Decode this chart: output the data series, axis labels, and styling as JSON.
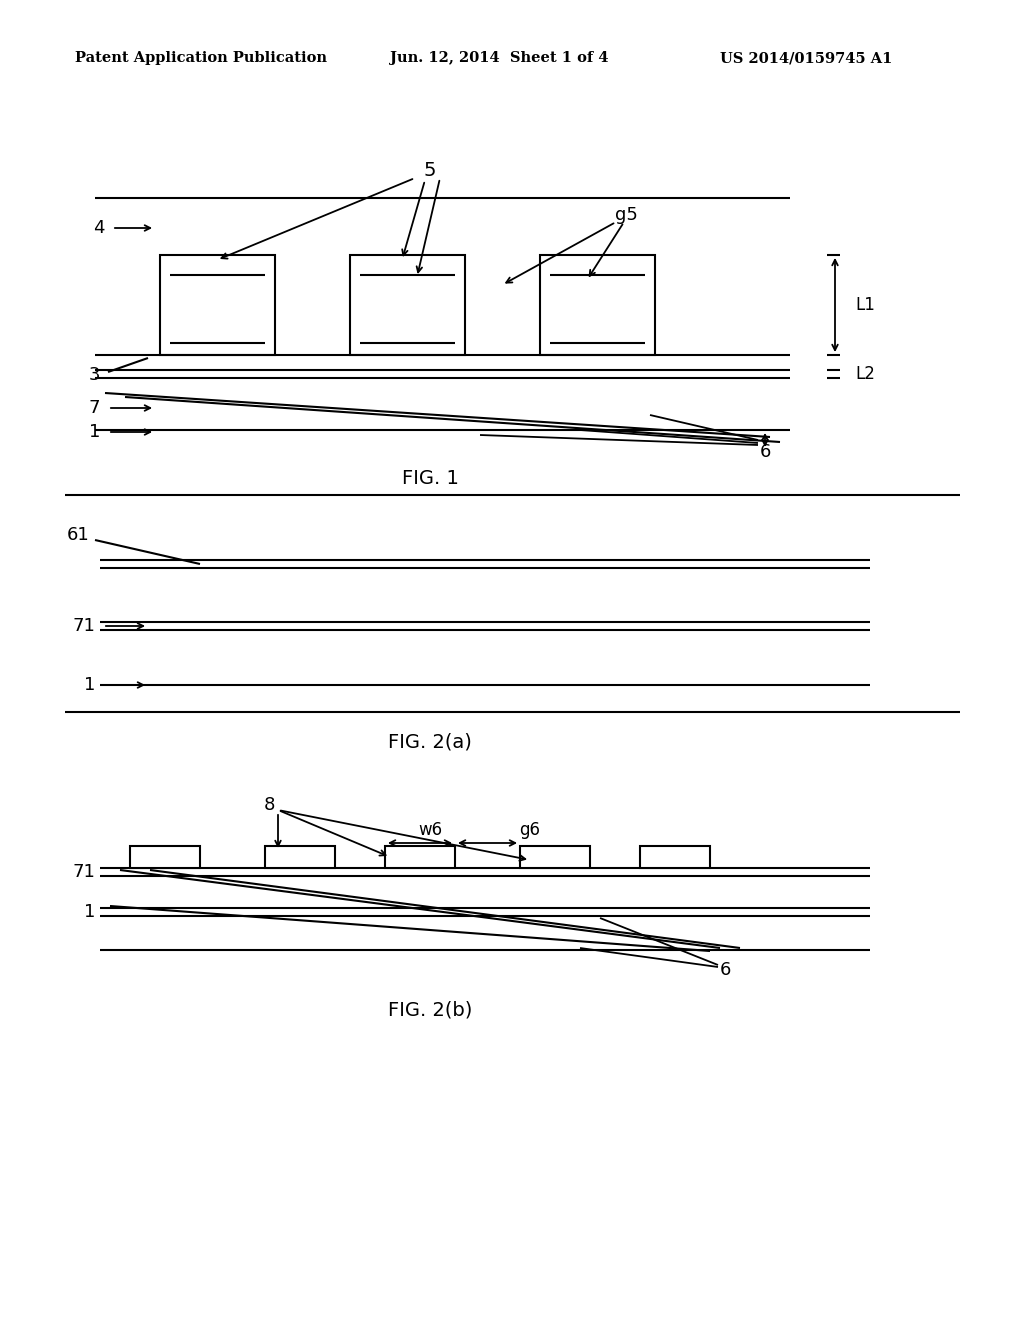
{
  "background_color": "#ffffff",
  "text_color": "#000000",
  "line_color": "#000000",
  "header_left": "Patent Application Publication",
  "header_center": "Jun. 12, 2014  Sheet 1 of 4",
  "header_right": "US 2014/0159745 A1",
  "fig1_caption": "FIG. 1",
  "fig2a_caption": "FIG. 2(a)",
  "fig2b_caption": "FIG. 2(b)"
}
